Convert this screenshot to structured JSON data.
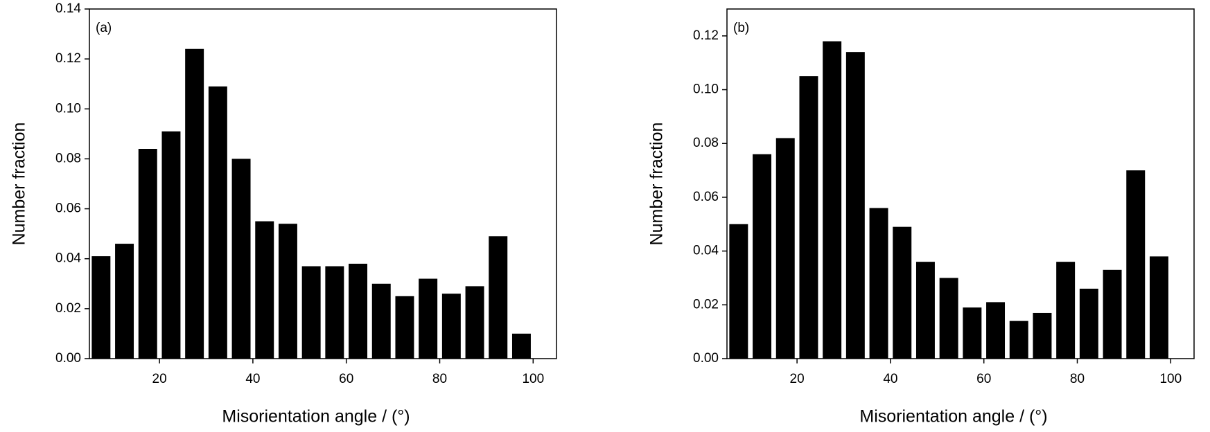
{
  "chart_data": [
    {
      "type": "histogram",
      "annotation": "(a)",
      "xlabel": "Misorientation angle / (°)",
      "ylabel": "Number fraction",
      "color": "#000000",
      "bins": [
        5,
        10,
        15,
        20,
        25,
        30,
        35,
        40,
        45,
        50,
        55,
        60,
        65,
        70,
        75,
        80,
        85,
        90,
        95,
        100
      ],
      "values": [
        0.041,
        0.046,
        0.084,
        0.091,
        0.124,
        0.109,
        0.08,
        0.055,
        0.054,
        0.037,
        0.037,
        0.038,
        0.03,
        0.025,
        0.032,
        0.026,
        0.029,
        0.049,
        0.01
      ],
      "xlim": [
        5,
        105
      ],
      "xticks": [
        20,
        40,
        60,
        80,
        100
      ],
      "ylim": [
        0,
        0.14
      ],
      "yticks": [
        {
          "value": 0,
          "label": "0.00"
        },
        0.02,
        0.04,
        0.06,
        0.08,
        {
          "value": 0.1,
          "label": "0.10"
        },
        0.12,
        0.14
      ]
    },
    {
      "type": "histogram",
      "annotation": "(b)",
      "xlabel": "Misorientation angle / (°)",
      "ylabel": "Number fraction",
      "color": "#000000",
      "bins": [
        5,
        10,
        15,
        20,
        25,
        30,
        35,
        40,
        45,
        50,
        55,
        60,
        65,
        70,
        75,
        80,
        85,
        90,
        95,
        100
      ],
      "values": [
        0.05,
        0.076,
        0.082,
        0.105,
        0.118,
        0.114,
        0.056,
        0.049,
        0.036,
        0.03,
        0.019,
        0.021,
        0.014,
        0.017,
        0.036,
        0.026,
        0.033,
        0.07,
        0.038
      ],
      "xlim": [
        5,
        105
      ],
      "xticks": [
        20,
        40,
        60,
        80,
        100
      ],
      "ylim": [
        0,
        0.13
      ],
      "yticks": [
        {
          "value": 0,
          "label": "0.00"
        },
        0.02,
        0.04,
        0.06,
        0.08,
        {
          "value": 0.1,
          "label": "0.10"
        },
        0.12
      ]
    }
  ]
}
